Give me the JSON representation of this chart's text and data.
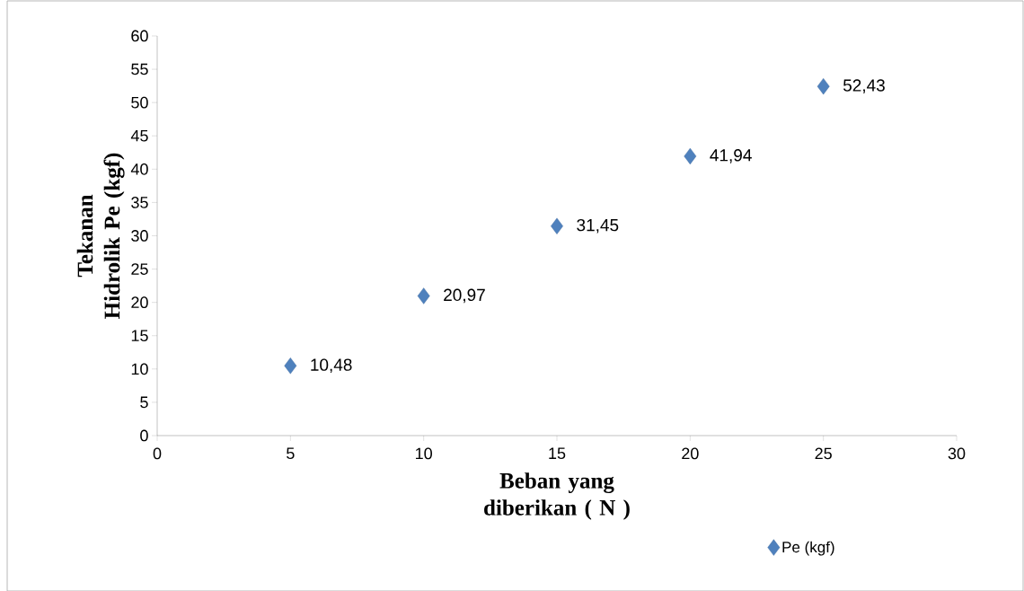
{
  "chart_data": {
    "type": "scatter",
    "xlabel": "Beban yang diberikan ( N )",
    "ylabel": "Tekanan Hidrolik  Pe (kgf)",
    "x": [
      5,
      10,
      15,
      20,
      25
    ],
    "series": [
      {
        "name": "Pe (kgf)",
        "color": "#4f81bd",
        "values": [
          10.48,
          20.97,
          31.45,
          41.94,
          52.43
        ],
        "value_labels": [
          "10,48",
          "20,97",
          "31,45",
          "41,94",
          "52,43"
        ]
      }
    ],
    "xlim": [
      0,
      30
    ],
    "xticks": [
      0,
      5,
      10,
      15,
      20,
      25,
      30
    ],
    "ylim": [
      0,
      60
    ],
    "yticks": [
      0,
      5,
      10,
      15,
      20,
      25,
      30,
      35,
      40,
      45,
      50,
      55,
      60
    ],
    "marker": "diamond",
    "legend": "bottom right",
    "grid": false
  }
}
